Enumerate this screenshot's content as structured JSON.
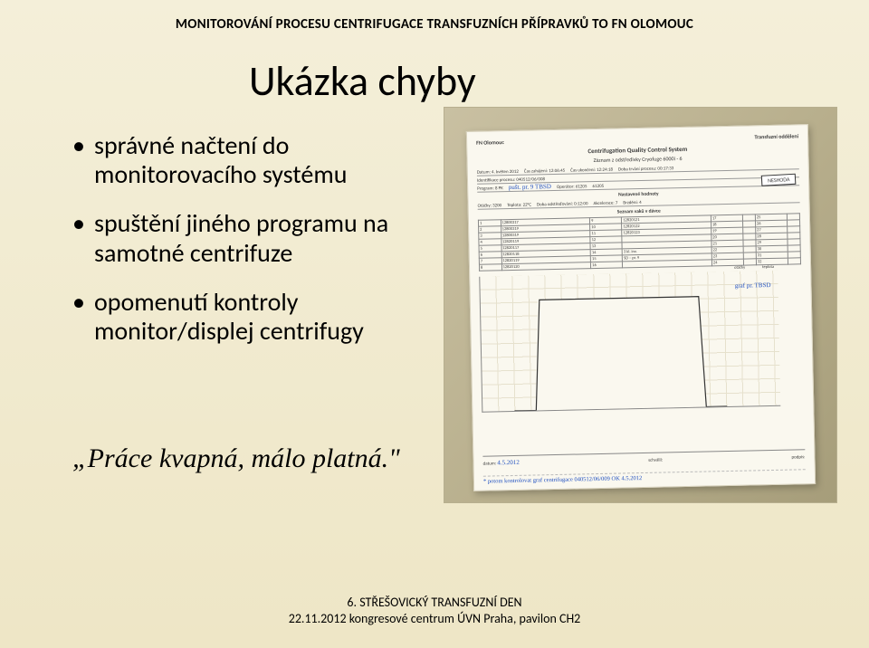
{
  "header": "MONITOROVÁNÍ  PROCESU CENTRIFUGACE TRANSFUZNÍCH  PŘÍPRAVKŮ  TO FN OLOMOUC",
  "title": "Ukázka  chyby",
  "bullets": [
    "správné načtení do monitorovacího systému",
    "spuštění jiného programu na samotné centrifuze",
    "opomenutí kontroly monitor/displej centrifugy"
  ],
  "quote": "„Práce kvapná, málo platná.\"",
  "footer": {
    "line1": "6. STŘEŠOVICKÝ TRANSFUZNÍ DEN",
    "line2": "22.11.2012 kongresové centrum ÚVN Praha, pavilon CH2"
  },
  "form": {
    "org_left": "FN Olomouc",
    "org_right": "Transfuzní oddělení",
    "title": "Centrifugation Quality Control System",
    "subtitle": "Záznam z odstředivky Cryofuge 6000i - 6",
    "datum": "Datum: 4. květen 2012",
    "zahajeni": "Čas zahájení: 12:06:45",
    "ukonceni": "Čas ukončení: 12:24:18",
    "trvani": "Doba trvání procesu: 00:17:33",
    "proc_id": "Identifikace procesu: 040512/06/008",
    "program": "Program: 8 PK",
    "program_hand": "pušt. pr. 9 TBSD",
    "operator": "Operátor: 61205",
    "operator2": "61205",
    "badge": "NESHODA",
    "nastav_label": "Nastavené hodnoty",
    "nastav_row": {
      "otacky": "Otáčky: 3200",
      "teplota": "Teplota: 22°C",
      "doba": "Doba odstřeďování: 0:12:00",
      "akce": "Akcelerace: 7",
      "brzd": "Brzdění: 4"
    },
    "seznam_label": "Seznam vaků v dávce",
    "bag_table": {
      "cols": 8,
      "rows": 8,
      "cells": [
        [
          "1",
          "12800317",
          "9",
          "12820121",
          "17",
          "",
          "25",
          ""
        ],
        [
          "2",
          "12800319",
          "10",
          "12820122",
          "18",
          "",
          "26",
          ""
        ],
        [
          "3",
          "12800319",
          "11",
          "12820123",
          "19",
          "",
          "27",
          ""
        ],
        [
          "4",
          "12820119",
          "12",
          "",
          "20",
          "",
          "28",
          ""
        ],
        [
          "5",
          "12820117",
          "13",
          "",
          "21",
          "",
          "29",
          ""
        ],
        [
          "6",
          "12820118",
          "14",
          "3 kl. inv.",
          "22",
          "",
          "30",
          ""
        ],
        [
          "7",
          "12820119",
          "15",
          "SD – pr. 9",
          "23",
          "",
          "31",
          ""
        ],
        [
          "8",
          "12820120",
          "16",
          "",
          "24",
          "",
          "32",
          ""
        ]
      ]
    },
    "chart": {
      "y_ticks": [
        "1500",
        "1400",
        "1300",
        "1200",
        "1100",
        "1000",
        "900",
        "800",
        "700",
        "600",
        "500",
        "400",
        "300",
        "200",
        "100"
      ],
      "y_left_label": "otáčky (rpm)",
      "legend": {
        "left": "otáčky",
        "right": "teplota"
      },
      "hand_note": "graf pr. TBSD",
      "x_start": "00:00:00",
      "x_end": "00:17:00",
      "ylim_left": [
        0,
        1500
      ],
      "ylim_right": [
        0,
        30
      ],
      "plateau_value": 1400,
      "line_color": "#333333",
      "bg_color": "#faf8ef",
      "grid_color": "#e6e1cd"
    },
    "sig": {
      "datum_label": "datum:",
      "datum_val": "4.5.2012",
      "schvalil": "schválil:",
      "podpis": "podpis:"
    },
    "bottom_note": "* potom kontrolovat graf centrifugace 040512/06/009 OK   4.5.2012"
  },
  "colors": {
    "bg_top": "#f4efd9",
    "bg_bottom": "#eee6c6",
    "text": "#000000",
    "hand_ink": "#2050c0"
  }
}
